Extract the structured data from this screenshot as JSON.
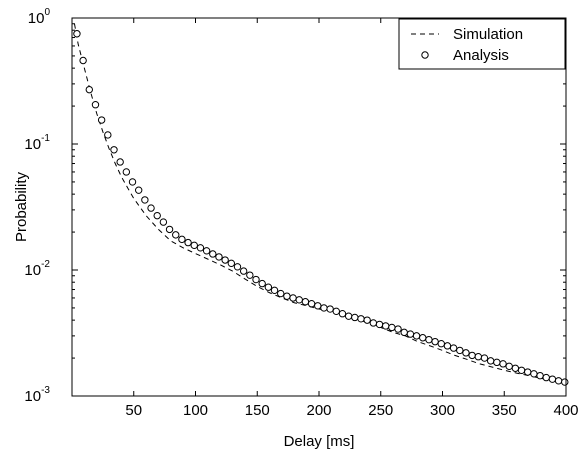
{
  "chart_data": {
    "type": "line",
    "xlabel": "Delay [ms]",
    "ylabel": "Probability",
    "xlim": [
      0,
      400
    ],
    "ylim": [
      0.001,
      1
    ],
    "yscale": "log",
    "grid": false,
    "legend_position": "top-right",
    "x_ticks": [
      "50",
      "100",
      "150",
      "200",
      "250",
      "300",
      "350",
      "400"
    ],
    "y_ticks": [
      {
        "base": "10",
        "exp": "0"
      },
      {
        "base": "10",
        "exp": "-1"
      },
      {
        "base": "10",
        "exp": "-2"
      },
      {
        "base": "10",
        "exp": "-3"
      }
    ],
    "legend": [
      {
        "label": "Simulation",
        "style": "dashed-line"
      },
      {
        "label": "Analysis",
        "style": "circle-marker"
      }
    ],
    "series": [
      {
        "name": "Simulation",
        "style": "dashed",
        "x": [
          2,
          5,
          10,
          15,
          20,
          25,
          30,
          35,
          40,
          45,
          50,
          60,
          70,
          80,
          90,
          100,
          110,
          120,
          130,
          140,
          150,
          160,
          170,
          180,
          190,
          200,
          210,
          220,
          230,
          240,
          250,
          260,
          270,
          280,
          290,
          300,
          310,
          320,
          330,
          340,
          350,
          360,
          370,
          380,
          390,
          400
        ],
        "y": [
          0.9,
          0.62,
          0.4,
          0.26,
          0.175,
          0.125,
          0.092,
          0.07,
          0.055,
          0.045,
          0.037,
          0.027,
          0.021,
          0.017,
          0.015,
          0.0135,
          0.0122,
          0.011,
          0.0098,
          0.0085,
          0.0074,
          0.0066,
          0.006,
          0.0055,
          0.0052,
          0.0049,
          0.0047,
          0.0044,
          0.0041,
          0.0038,
          0.0035,
          0.0032,
          0.003,
          0.0027,
          0.0025,
          0.0023,
          0.0021,
          0.00195,
          0.0018,
          0.0017,
          0.0016,
          0.00152,
          0.00145,
          0.00138,
          0.00132,
          0.00127
        ]
      },
      {
        "name": "Analysis",
        "style": "circles",
        "x": [
          4,
          9,
          14,
          19,
          24,
          29,
          34,
          39,
          44,
          49,
          54,
          59,
          64,
          69,
          74,
          79,
          84,
          89,
          94,
          99,
          104,
          109,
          114,
          119,
          124,
          129,
          134,
          139,
          144,
          149,
          154,
          159,
          164,
          169,
          174,
          179,
          184,
          189,
          194,
          199,
          204,
          209,
          214,
          219,
          224,
          229,
          234,
          239,
          244,
          249,
          254,
          259,
          264,
          269,
          274,
          279,
          284,
          289,
          294,
          299,
          304,
          309,
          314,
          319,
          324,
          329,
          334,
          339,
          344,
          349,
          354,
          359,
          364,
          369,
          374,
          379,
          384,
          389,
          394,
          399
        ],
        "y": [
          0.75,
          0.46,
          0.27,
          0.205,
          0.155,
          0.118,
          0.09,
          0.072,
          0.06,
          0.05,
          0.043,
          0.036,
          0.031,
          0.027,
          0.024,
          0.021,
          0.019,
          0.0175,
          0.0165,
          0.0157,
          0.015,
          0.0142,
          0.0134,
          0.0127,
          0.012,
          0.0113,
          0.0106,
          0.0098,
          0.0091,
          0.0084,
          0.0078,
          0.0073,
          0.0069,
          0.0065,
          0.0062,
          0.006,
          0.0058,
          0.0056,
          0.0054,
          0.0052,
          0.005,
          0.0049,
          0.0047,
          0.0045,
          0.0043,
          0.0042,
          0.0041,
          0.004,
          0.0038,
          0.0037,
          0.0036,
          0.0035,
          0.0034,
          0.0032,
          0.0031,
          0.003,
          0.0029,
          0.0028,
          0.0027,
          0.0026,
          0.0025,
          0.0024,
          0.0023,
          0.0022,
          0.0021,
          0.00205,
          0.002,
          0.0019,
          0.00185,
          0.0018,
          0.00172,
          0.00166,
          0.0016,
          0.00155,
          0.0015,
          0.00145,
          0.0014,
          0.00136,
          0.00132,
          0.00129
        ]
      }
    ]
  }
}
